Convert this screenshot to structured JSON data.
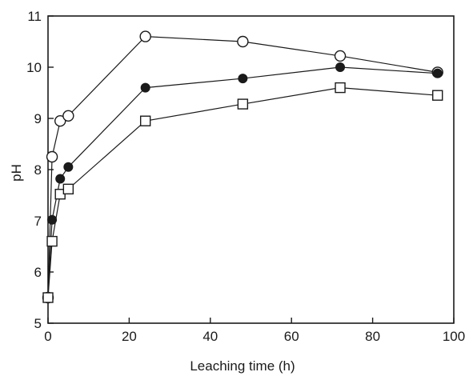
{
  "chart_data": {
    "type": "scatter",
    "title": "",
    "xlabel": "Leaching time (h)",
    "ylabel": "pH",
    "xlim": [
      0,
      100
    ],
    "ylim": [
      5,
      11
    ],
    "x_ticks": [
      0,
      20,
      40,
      60,
      80,
      100
    ],
    "y_ticks": [
      5,
      6,
      7,
      8,
      9,
      10,
      11
    ],
    "grid": false,
    "legend": "none",
    "line_color": "#1a1a1a",
    "series": [
      {
        "marker": "open-circle",
        "points": [
          [
            0,
            5.5
          ],
          [
            1,
            8.25
          ],
          [
            3,
            8.95
          ],
          [
            5,
            9.05
          ],
          [
            24,
            10.6
          ],
          [
            48,
            10.5
          ],
          [
            72,
            10.22
          ],
          [
            96,
            9.9
          ]
        ]
      },
      {
        "marker": "filled-circle",
        "points": [
          [
            0,
            5.5
          ],
          [
            1,
            7.02
          ],
          [
            3,
            7.82
          ],
          [
            5,
            8.05
          ],
          [
            24,
            9.6
          ],
          [
            48,
            9.78
          ],
          [
            72,
            10.0
          ],
          [
            96,
            9.88
          ]
        ]
      },
      {
        "marker": "open-square",
        "points": [
          [
            0,
            5.5
          ],
          [
            1,
            6.6
          ],
          [
            3,
            7.52
          ],
          [
            5,
            7.62
          ],
          [
            24,
            8.95
          ],
          [
            48,
            9.28
          ],
          [
            72,
            9.6
          ],
          [
            96,
            9.45
          ]
        ]
      }
    ]
  }
}
